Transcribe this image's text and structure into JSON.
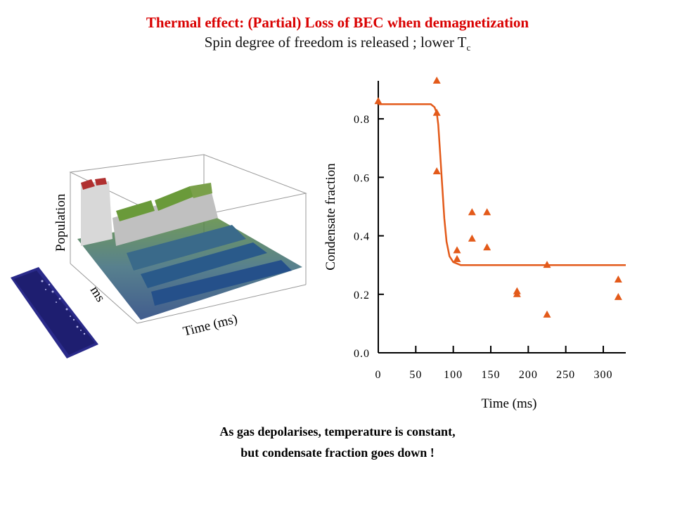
{
  "slide": {
    "title": "Thermal effect: (Partial) Loss of BEC when demagnetization",
    "subtitle_main": "Spin degree of freedom is released ; lower T",
    "subtitle_sub": "c",
    "caption_line1": "As gas depolarises, temperature is constant,",
    "caption_line2": "but condensate fraction goes down !"
  },
  "plot3d": {
    "labels": {
      "z": "Population",
      "y": "ms",
      "x": "Time (ms)"
    }
  },
  "chart_data": {
    "type": "scatter",
    "xlabel": "Time (ms)",
    "ylabel": "Condensate fraction",
    "xlim": [
      0,
      330
    ],
    "ylim": [
      0,
      0.93
    ],
    "xticks": [
      0,
      50,
      100,
      150,
      200,
      250,
      300
    ],
    "yticks": [
      0.0,
      0.2,
      0.4,
      0.6,
      0.8
    ],
    "marker_color": "#e35a1a",
    "fit_color": "#e35a1a",
    "points": [
      {
        "x": 0,
        "y": 0.86
      },
      {
        "x": 78,
        "y": 0.93
      },
      {
        "x": 78,
        "y": 0.82
      },
      {
        "x": 78,
        "y": 0.62
      },
      {
        "x": 105,
        "y": 0.35
      },
      {
        "x": 105,
        "y": 0.32
      },
      {
        "x": 125,
        "y": 0.48
      },
      {
        "x": 125,
        "y": 0.39
      },
      {
        "x": 145,
        "y": 0.48
      },
      {
        "x": 145,
        "y": 0.36
      },
      {
        "x": 185,
        "y": 0.21
      },
      {
        "x": 185,
        "y": 0.2
      },
      {
        "x": 225,
        "y": 0.3
      },
      {
        "x": 225,
        "y": 0.13
      },
      {
        "x": 320,
        "y": 0.25
      },
      {
        "x": 320,
        "y": 0.19
      }
    ],
    "fit_curve": [
      {
        "x": 0,
        "y": 0.85
      },
      {
        "x": 70,
        "y": 0.85
      },
      {
        "x": 75,
        "y": 0.84
      },
      {
        "x": 78,
        "y": 0.82
      },
      {
        "x": 80,
        "y": 0.78
      },
      {
        "x": 82,
        "y": 0.7
      },
      {
        "x": 85,
        "y": 0.58
      },
      {
        "x": 88,
        "y": 0.46
      },
      {
        "x": 91,
        "y": 0.38
      },
      {
        "x": 95,
        "y": 0.33
      },
      {
        "x": 100,
        "y": 0.31
      },
      {
        "x": 110,
        "y": 0.3
      },
      {
        "x": 330,
        "y": 0.3
      }
    ]
  }
}
